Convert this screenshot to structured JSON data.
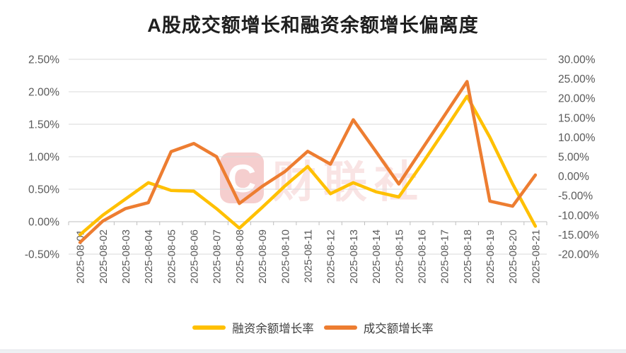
{
  "page": {
    "title": "A股成交额增长和融资余额增长偏离度"
  },
  "watermark": {
    "logo_letter": "C",
    "text": "财联社",
    "color": "#DD5E5E"
  },
  "chart_data": {
    "type": "line",
    "title": "A股成交额增长和融资余额增长偏离度",
    "grid": true,
    "legend_position": "bottom",
    "grid_color": "#D9D9D9",
    "axis_line_color": "#BFBFBF",
    "tick_label_color": "#595959",
    "categories": [
      "2025-08-01",
      "2025-08-02",
      "2025-08-03",
      "2025-08-04",
      "2025-08-05",
      "2025-08-06",
      "2025-08-07",
      "2025-08-08",
      "2025-08-09",
      "2025-08-10",
      "2025-08-11",
      "2025-08-12",
      "2025-08-13",
      "2025-08-14",
      "2025-08-15",
      "2025-08-16",
      "2025-08-17",
      "2025-08-18",
      "2025-08-19",
      "2025-08-20",
      "2025-08-21"
    ],
    "left_axis": {
      "min": -0.5,
      "max": 2.5,
      "unit": "%",
      "tick_values": [
        2.5,
        2.0,
        1.5,
        1.0,
        0.5,
        0.0,
        -0.5
      ],
      "tick_labels": [
        "2.50%",
        "2.00%",
        "1.50%",
        "1.00%",
        "0.50%",
        "0.00%",
        "-0.50%"
      ]
    },
    "right_axis": {
      "min": -20,
      "max": 30,
      "unit": "%",
      "tick_values": [
        30,
        25,
        20,
        15,
        10,
        5,
        0,
        -5,
        -10,
        -15,
        -20
      ],
      "tick_labels": [
        "30.00%",
        "25.00%",
        "20.00%",
        "15.00%",
        "10.00%",
        "5.00%",
        "0.00%",
        "-5.00%",
        "-10.00%",
        "-15.00%",
        "-20.00%"
      ]
    },
    "series": [
      {
        "name": "融资余额增长率",
        "axis": "left",
        "color": "#FFC000",
        "values": [
          -0.2,
          0.1,
          0.35,
          0.6,
          0.48,
          0.47,
          0.2,
          -0.1,
          0.22,
          0.55,
          0.85,
          0.43,
          0.6,
          0.46,
          0.38,
          0.88,
          1.4,
          1.93,
          1.3,
          0.58,
          -0.07
        ]
      },
      {
        "name": "成交额增长率",
        "axis": "right",
        "color": "#ED7D31",
        "values": [
          -17.0,
          -11.5,
          -8.3,
          -6.8,
          6.3,
          8.4,
          5.0,
          -7.0,
          -2.6,
          1.2,
          6.4,
          3.1,
          14.5,
          6.3,
          -2.0,
          6.8,
          15.5,
          24.3,
          -6.4,
          -7.7,
          0.3
        ]
      }
    ]
  }
}
